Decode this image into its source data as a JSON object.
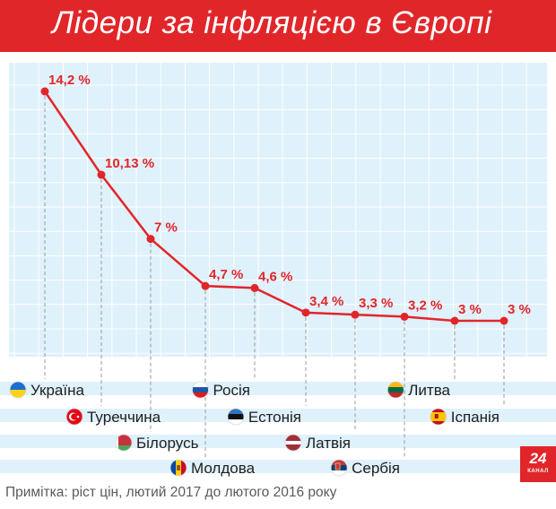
{
  "title": "Лідери за інфляцією в Європі",
  "note": "Примітка: ріст цін, лютий 2017 до лютого 2016 року",
  "logo": {
    "number": "24",
    "label": "КАНАЛ"
  },
  "colors": {
    "accent": "#e1262a",
    "panel": "#dff1fb",
    "grid": "#ffffff",
    "guide": "#9a9a9a"
  },
  "chart_data": {
    "type": "line",
    "categories": [
      "Україна",
      "Туреччина",
      "Білорусь",
      "Молдова",
      "Росія",
      "Естонія",
      "Латвія",
      "Сербія",
      "Литва",
      "Іспанія"
    ],
    "values": [
      14.2,
      10.13,
      7,
      4.7,
      4.6,
      3.4,
      3.3,
      3.2,
      3,
      3
    ],
    "value_labels": [
      "14,2 %",
      "10,13 %",
      "7 %",
      "4,7 %",
      "4,6 %",
      "3,4 %",
      "3,3 %",
      "3,2 %",
      "3 %",
      "3 %"
    ],
    "flags": [
      "ukraine-flag-icon",
      "turkey-flag-icon",
      "belarus-flag-icon",
      "moldova-flag-icon",
      "russia-flag-icon",
      "estonia-flag-icon",
      "latvia-flag-icon",
      "serbia-flag-icon",
      "lithuania-flag-icon",
      "spain-flag-icon"
    ],
    "unit": "%",
    "grid": true,
    "legend": "none"
  }
}
